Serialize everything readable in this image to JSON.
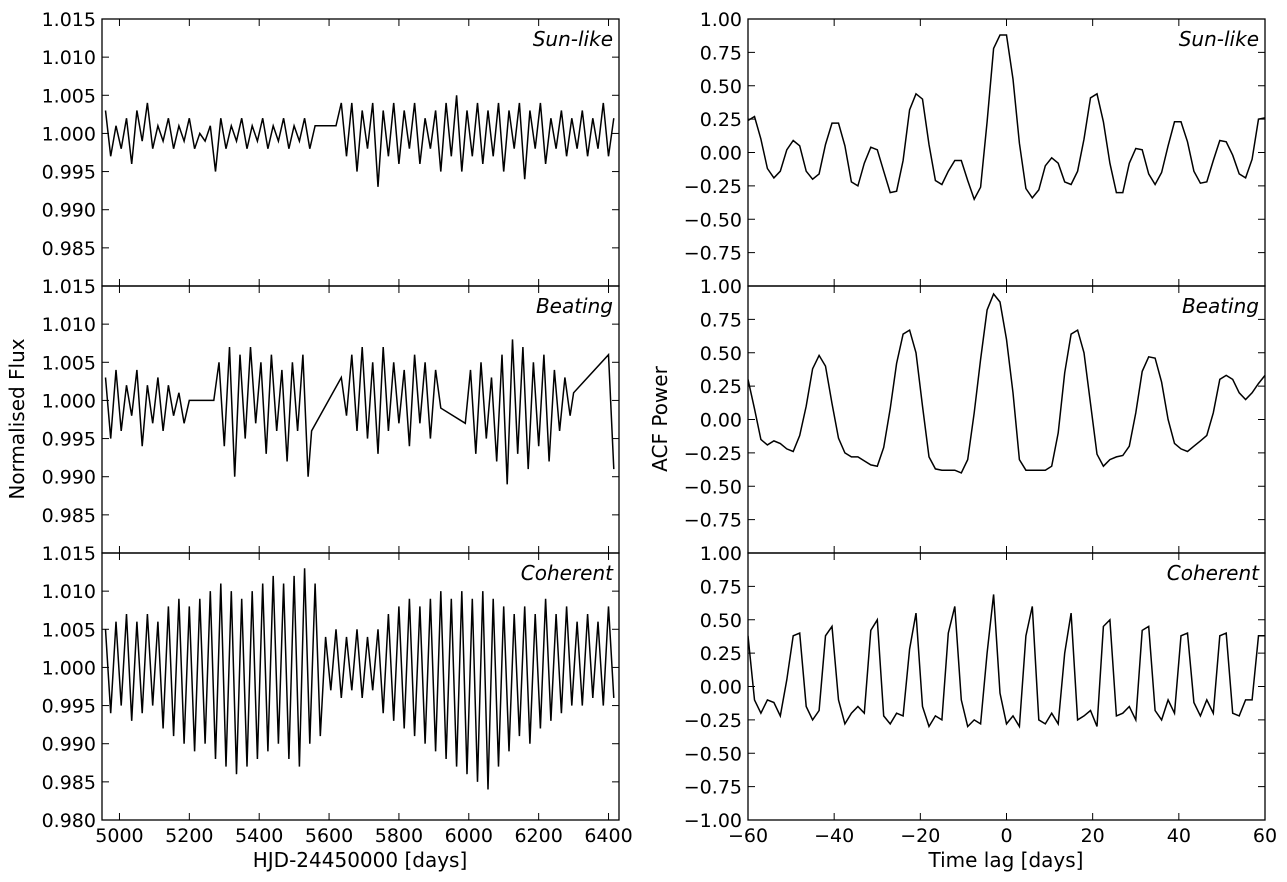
{
  "chart_data": [
    {
      "type": "line",
      "panel": "flux-sun-like",
      "annotation": "Sun-like",
      "xlim": [
        4950,
        6430
      ],
      "ylim": [
        0.98,
        1.015
      ],
      "yticks": [
        "1.015",
        "1.010",
        "1.005",
        "1.000",
        "0.995",
        "0.990",
        "0.985"
      ],
      "x": [
        4960,
        4975,
        4990,
        5005,
        5020,
        5035,
        5050,
        5065,
        5080,
        5095,
        5110,
        5125,
        5140,
        5155,
        5170,
        5185,
        5200,
        5215,
        5230,
        5245,
        5260,
        5275,
        5290,
        5305,
        5320,
        5335,
        5350,
        5365,
        5380,
        5395,
        5410,
        5425,
        5440,
        5455,
        5470,
        5485,
        5500,
        5515,
        5530,
        5545,
        5560,
        5575,
        5590,
        5605,
        5620,
        5635,
        5650,
        5665,
        5680,
        5695,
        5710,
        5725,
        5740,
        5755,
        5770,
        5785,
        5800,
        5815,
        5830,
        5845,
        5860,
        5875,
        5890,
        5905,
        5920,
        5935,
        5950,
        5965,
        5980,
        5995,
        6010,
        6025,
        6040,
        6055,
        6070,
        6085,
        6100,
        6115,
        6130,
        6145,
        6160,
        6175,
        6190,
        6205,
        6220,
        6235,
        6250,
        6265,
        6280,
        6295,
        6310,
        6325,
        6340,
        6355,
        6370,
        6385,
        6400,
        6415
      ],
      "y": [
        1.003,
        0.997,
        1.001,
        0.998,
        1.002,
        0.996,
        1.003,
        0.999,
        1.004,
        0.998,
        1.001,
        0.999,
        1.002,
        0.998,
        1.001,
        0.999,
        1.002,
        0.998,
        1.0,
        0.999,
        1.001,
        0.995,
        1.002,
        0.998,
        1.001,
        0.999,
        1.002,
        0.998,
        1.001,
        0.999,
        1.002,
        0.998,
        1.001,
        0.999,
        1.002,
        0.998,
        1.001,
        0.999,
        1.002,
        0.998,
        1.001,
        1.001,
        1.001,
        1.001,
        1.001,
        1.004,
        0.997,
        1.004,
        0.995,
        1.003,
        0.998,
        1.004,
        0.993,
        1.003,
        0.997,
        1.004,
        0.996,
        1.003,
        0.998,
        1.004,
        0.996,
        1.002,
        0.998,
        1.003,
        0.995,
        1.004,
        0.997,
        1.005,
        0.995,
        1.003,
        0.997,
        1.004,
        0.996,
        1.003,
        0.997,
        1.004,
        0.995,
        1.003,
        0.998,
        1.004,
        0.994,
        1.003,
        0.998,
        1.004,
        0.996,
        1.002,
        0.998,
        1.003,
        0.997,
        1.002,
        0.998,
        1.003,
        0.997,
        1.002,
        0.998,
        1.004,
        0.997,
        1.002
      ]
    },
    {
      "type": "line",
      "panel": "flux-beating",
      "annotation": "Beating",
      "xlim": [
        4950,
        6430
      ],
      "ylim": [
        0.98,
        1.015
      ],
      "yticks": [
        "1.015",
        "1.010",
        "1.005",
        "1.000",
        "0.995",
        "0.990",
        "0.985"
      ],
      "ylabel": "Normalised Flux",
      "x": [
        4960,
        4975,
        4990,
        5005,
        5020,
        5035,
        5050,
        5065,
        5080,
        5095,
        5110,
        5125,
        5140,
        5155,
        5170,
        5185,
        5200,
        5270,
        5285,
        5300,
        5315,
        5330,
        5345,
        5360,
        5375,
        5390,
        5405,
        5420,
        5435,
        5450,
        5465,
        5480,
        5495,
        5510,
        5525,
        5540,
        5550,
        5635,
        5650,
        5665,
        5680,
        5695,
        5710,
        5725,
        5740,
        5755,
        5770,
        5785,
        5800,
        5815,
        5830,
        5845,
        5860,
        5875,
        5890,
        5905,
        5920,
        5990,
        6005,
        6020,
        6035,
        6050,
        6065,
        6080,
        6095,
        6110,
        6125,
        6140,
        6155,
        6170,
        6185,
        6200,
        6215,
        6230,
        6245,
        6260,
        6275,
        6290,
        6300,
        6400,
        6415
      ],
      "y": [
        1.003,
        0.995,
        1.004,
        0.996,
        1.002,
        0.998,
        1.004,
        0.994,
        1.002,
        0.997,
        1.003,
        0.996,
        1.002,
        0.998,
        1.001,
        0.997,
        1.0,
        1.0,
        1.005,
        0.994,
        1.007,
        0.99,
        1.006,
        0.995,
        1.007,
        0.997,
        1.005,
        0.993,
        1.006,
        0.996,
        1.004,
        0.992,
        1.005,
        0.996,
        1.006,
        0.99,
        0.996,
        1.003,
        0.998,
        1.006,
        0.996,
        1.007,
        0.995,
        1.005,
        0.993,
        1.007,
        0.996,
        1.005,
        0.997,
        1.004,
        0.994,
        1.006,
        0.997,
        1.005,
        0.995,
        1.004,
        0.999,
        0.997,
        1.004,
        0.993,
        1.005,
        0.995,
        1.003,
        0.992,
        1.006,
        0.989,
        1.008,
        0.993,
        1.007,
        0.991,
        1.005,
        0.994,
        1.006,
        0.992,
        1.004,
        0.996,
        1.003,
        0.998,
        1.001,
        1.006,
        0.991
      ]
    },
    {
      "type": "line",
      "panel": "flux-coherent",
      "annotation": "Coherent",
      "xlim": [
        4950,
        6430
      ],
      "ylim": [
        0.98,
        1.015
      ],
      "yticks": [
        "1.015",
        "1.010",
        "1.005",
        "1.000",
        "0.995",
        "0.990",
        "0.985",
        "0.980"
      ],
      "xticks": [
        "5000",
        "5200",
        "5400",
        "5600",
        "5800",
        "6000",
        "6200",
        "6400"
      ],
      "xlabel": "HJD-24450000 [days]",
      "x": [
        4960,
        4975,
        4990,
        5005,
        5020,
        5035,
        5050,
        5065,
        5080,
        5095,
        5110,
        5125,
        5140,
        5155,
        5170,
        5185,
        5200,
        5215,
        5230,
        5245,
        5260,
        5275,
        5290,
        5305,
        5320,
        5335,
        5350,
        5365,
        5380,
        5395,
        5410,
        5425,
        5440,
        5455,
        5470,
        5485,
        5500,
        5515,
        5530,
        5545,
        5560,
        5575,
        5590,
        5605,
        5620,
        5635,
        5650,
        5665,
        5680,
        5695,
        5710,
        5725,
        5740,
        5755,
        5770,
        5785,
        5800,
        5815,
        5830,
        5845,
        5860,
        5875,
        5890,
        5905,
        5920,
        5935,
        5950,
        5965,
        5980,
        5995,
        6010,
        6025,
        6040,
        6055,
        6070,
        6085,
        6100,
        6115,
        6130,
        6145,
        6160,
        6175,
        6190,
        6205,
        6220,
        6235,
        6250,
        6265,
        6280,
        6295,
        6310,
        6325,
        6340,
        6355,
        6370,
        6385,
        6400,
        6415
      ],
      "y": [
        1.005,
        0.994,
        1.006,
        0.995,
        1.007,
        0.993,
        1.006,
        0.994,
        1.007,
        0.995,
        1.006,
        0.992,
        1.008,
        0.991,
        1.009,
        0.99,
        1.008,
        0.989,
        1.009,
        0.99,
        1.01,
        0.988,
        1.011,
        0.987,
        1.01,
        0.986,
        1.009,
        0.987,
        1.01,
        0.988,
        1.011,
        0.989,
        1.012,
        0.99,
        1.011,
        0.988,
        1.012,
        0.987,
        1.013,
        0.99,
        1.011,
        0.991,
        1.004,
        0.997,
        1.005,
        0.996,
        1.004,
        0.997,
        1.005,
        0.996,
        1.004,
        0.997,
        1.005,
        0.994,
        1.007,
        0.993,
        1.008,
        0.992,
        1.009,
        0.991,
        1.008,
        0.99,
        1.009,
        0.989,
        1.01,
        0.988,
        1.009,
        0.987,
        1.01,
        0.986,
        1.009,
        0.985,
        1.01,
        0.984,
        1.009,
        0.987,
        1.008,
        0.989,
        1.007,
        0.991,
        1.008,
        0.99,
        1.007,
        0.992,
        1.009,
        0.993,
        1.007,
        0.994,
        1.008,
        0.995,
        1.006,
        0.995,
        1.007,
        0.996,
        1.006,
        0.995,
        1.008,
        0.996
      ]
    },
    {
      "type": "line",
      "panel": "acf-sun-like",
      "annotation": "Sun-like",
      "xlim": [
        -60,
        60
      ],
      "ylim": [
        -1.0,
        1.0
      ],
      "yticks": [
        "1.00",
        "0.75",
        "0.50",
        "0.25",
        "0.00",
        "−0.25",
        "−0.50",
        "−0.75"
      ],
      "x": [
        -60,
        -58.5,
        -57,
        -55.5,
        -54,
        -52.5,
        -51,
        -49.5,
        -48,
        -46.5,
        -45,
        -43.5,
        -42,
        -40.5,
        -39,
        -37.5,
        -36,
        -34.5,
        -33,
        -31.5,
        -30,
        -28.5,
        -27,
        -25.5,
        -24,
        -22.5,
        -21,
        -19.5,
        -18,
        -16.5,
        -15,
        -13.5,
        -12,
        -10.5,
        -9,
        -7.5,
        -6,
        -4.5,
        -3,
        -1.5,
        0,
        1.5,
        3,
        4.5,
        6,
        7.5,
        9,
        10.5,
        12,
        13.5,
        15,
        16.5,
        18,
        19.5,
        21,
        22.5,
        24,
        25.5,
        27,
        28.5,
        30,
        31.5,
        33,
        34.5,
        36,
        37.5,
        39,
        40.5,
        42,
        43.5,
        45,
        46.5,
        48,
        49.5,
        51,
        52.5,
        54,
        55.5,
        57,
        58.5,
        60
      ],
      "y": [
        0.24,
        0.27,
        0.1,
        -0.12,
        -0.19,
        -0.14,
        0.02,
        0.09,
        0.05,
        -0.14,
        -0.2,
        -0.16,
        0.06,
        0.22,
        0.22,
        0.05,
        -0.22,
        -0.25,
        -0.08,
        0.04,
        0.02,
        -0.14,
        -0.3,
        -0.29,
        -0.06,
        0.32,
        0.44,
        0.4,
        0.06,
        -0.21,
        -0.24,
        -0.14,
        -0.06,
        -0.06,
        -0.21,
        -0.35,
        -0.26,
        0.23,
        0.78,
        0.88,
        0.88,
        0.55,
        0.07,
        -0.27,
        -0.34,
        -0.28,
        -0.1,
        -0.04,
        -0.08,
        -0.22,
        -0.24,
        -0.14,
        0.1,
        0.41,
        0.44,
        0.23,
        -0.08,
        -0.3,
        -0.3,
        -0.08,
        0.03,
        0.02,
        -0.16,
        -0.24,
        -0.15,
        0.05,
        0.23,
        0.23,
        0.08,
        -0.14,
        -0.23,
        -0.22,
        -0.06,
        0.09,
        0.08,
        -0.02,
        -0.16,
        -0.19,
        -0.05,
        0.25,
        0.26
      ]
    },
    {
      "type": "line",
      "panel": "acf-beating",
      "annotation": "Beating",
      "xlim": [
        -60,
        60
      ],
      "ylim": [
        -1.0,
        1.0
      ],
      "yticks": [
        "1.00",
        "0.75",
        "0.50",
        "0.25",
        "0.00",
        "−0.25",
        "−0.50",
        "−0.75"
      ],
      "ylabel": "ACF Power",
      "x": [
        -60,
        -58.5,
        -57,
        -55.5,
        -54,
        -52.5,
        -51,
        -49.5,
        -48,
        -46.5,
        -45,
        -43.5,
        -42,
        -40.5,
        -39,
        -37.5,
        -36,
        -34.5,
        -33,
        -31.5,
        -30,
        -28.5,
        -27,
        -25.5,
        -24,
        -22.5,
        -21,
        -19.5,
        -18,
        -16.5,
        -15,
        -13.5,
        -12,
        -10.5,
        -9,
        -7.5,
        -6,
        -4.5,
        -3,
        -1.5,
        0,
        1.5,
        3,
        4.5,
        6,
        7.5,
        9,
        10.5,
        12,
        13.5,
        15,
        16.5,
        18,
        19.5,
        21,
        22.5,
        24,
        25.5,
        27,
        28.5,
        30,
        31.5,
        33,
        34.5,
        36,
        37.5,
        39,
        40.5,
        42,
        43.5,
        45,
        46.5,
        48,
        49.5,
        51,
        52.5,
        54,
        55.5,
        57,
        58.5,
        60
      ],
      "y": [
        0.3,
        0.08,
        -0.15,
        -0.19,
        -0.16,
        -0.18,
        -0.22,
        -0.24,
        -0.12,
        0.1,
        0.38,
        0.48,
        0.4,
        0.12,
        -0.14,
        -0.25,
        -0.28,
        -0.28,
        -0.31,
        -0.34,
        -0.35,
        -0.21,
        0.08,
        0.42,
        0.64,
        0.67,
        0.5,
        0.1,
        -0.28,
        -0.37,
        -0.38,
        -0.38,
        -0.38,
        -0.4,
        -0.3,
        0.05,
        0.45,
        0.82,
        0.94,
        0.88,
        0.6,
        0.2,
        -0.3,
        -0.38,
        -0.38,
        -0.38,
        -0.38,
        -0.35,
        -0.1,
        0.35,
        0.64,
        0.67,
        0.5,
        0.12,
        -0.26,
        -0.35,
        -0.3,
        -0.28,
        -0.27,
        -0.2,
        0.05,
        0.36,
        0.47,
        0.46,
        0.28,
        0.0,
        -0.18,
        -0.22,
        -0.24,
        -0.2,
        -0.16,
        -0.12,
        0.05,
        0.3,
        0.33,
        0.3,
        0.2,
        0.15,
        0.2,
        0.27,
        0.33
      ]
    },
    {
      "type": "line",
      "panel": "acf-coherent",
      "annotation": "Coherent",
      "xlim": [
        -60,
        60
      ],
      "ylim": [
        -1.0,
        1.0
      ],
      "yticks": [
        "1.00",
        "0.75",
        "0.50",
        "0.25",
        "0.00",
        "−0.25",
        "−0.50",
        "−0.75",
        "−1.00"
      ],
      "xticks": [
        "−60",
        "−40",
        "−20",
        "0",
        "20",
        "40",
        "60"
      ],
      "xlabel": "Time lag [days]",
      "x": [
        -60,
        -58.5,
        -57,
        -55.5,
        -54,
        -52.5,
        -51,
        -49.5,
        -48,
        -46.5,
        -45,
        -43.5,
        -42,
        -40.5,
        -39,
        -37.5,
        -36,
        -34.5,
        -33,
        -31.5,
        -30,
        -28.5,
        -27,
        -25.5,
        -24,
        -22.5,
        -21,
        -19.5,
        -18,
        -16.5,
        -15,
        -13.5,
        -12,
        -10.5,
        -9,
        -7.5,
        -6,
        -4.5,
        -3,
        -1.5,
        0,
        1.5,
        3,
        4.5,
        6,
        7.5,
        9,
        10.5,
        12,
        13.5,
        15,
        16.5,
        18,
        19.5,
        21,
        22.5,
        24,
        25.5,
        27,
        28.5,
        30,
        31.5,
        33,
        34.5,
        36,
        37.5,
        39,
        40.5,
        42,
        43.5,
        45,
        46.5,
        48,
        49.5,
        51,
        52.5,
        54,
        55.5,
        57,
        58.5,
        60
      ],
      "y": [
        0.38,
        -0.1,
        -0.2,
        -0.1,
        -0.12,
        -0.22,
        0.05,
        0.38,
        0.4,
        -0.15,
        -0.25,
        -0.18,
        0.38,
        0.45,
        -0.1,
        -0.28,
        -0.2,
        -0.15,
        -0.2,
        0.42,
        0.5,
        -0.22,
        -0.28,
        -0.2,
        -0.22,
        0.28,
        0.55,
        -0.15,
        -0.3,
        -0.22,
        -0.25,
        0.4,
        0.6,
        -0.1,
        -0.3,
        -0.25,
        -0.28,
        0.25,
        0.69,
        -0.05,
        -0.28,
        -0.22,
        -0.3,
        0.38,
        0.6,
        -0.25,
        -0.28,
        -0.2,
        -0.28,
        0.25,
        0.55,
        -0.25,
        -0.22,
        -0.18,
        -0.3,
        0.45,
        0.5,
        -0.22,
        -0.2,
        -0.15,
        -0.25,
        0.42,
        0.45,
        -0.18,
        -0.25,
        -0.1,
        -0.2,
        0.38,
        0.4,
        -0.12,
        -0.22,
        -0.1,
        -0.2,
        0.38,
        0.4,
        -0.2,
        -0.22,
        -0.1,
        -0.1,
        0.38,
        0.38
      ]
    }
  ]
}
